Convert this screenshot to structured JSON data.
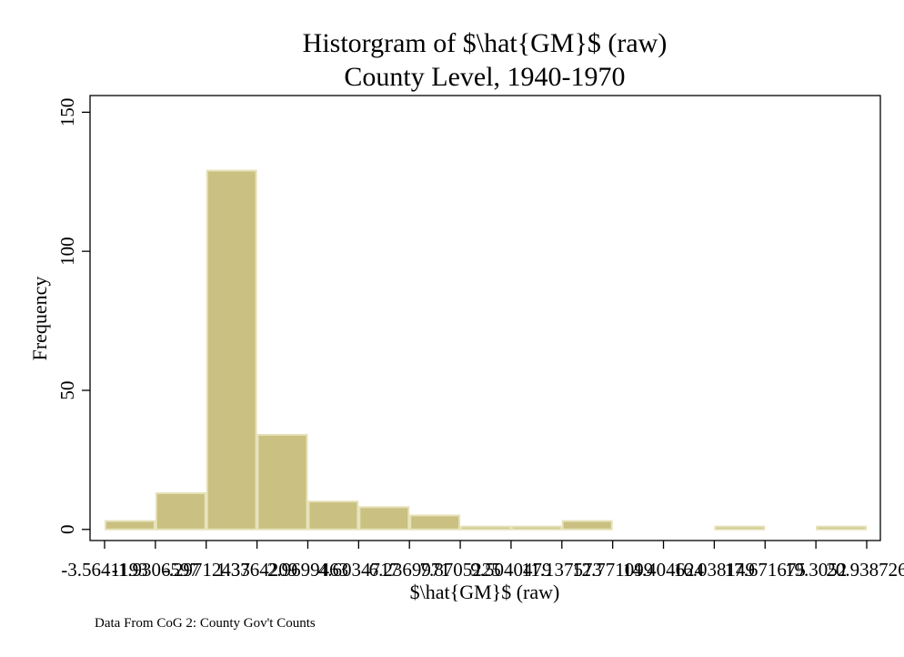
{
  "chart_data": {
    "type": "bar",
    "title": "Historgram of $\\hat{GM}$ (raw)",
    "subtitle": "County Level, 1940-1970",
    "xlabel": "$\\hat{GM}$ (raw)",
    "ylabel": "Frequency",
    "note": "Data From CoG 2: County Gov't Counts",
    "bin_edges": [
      -3.5641193,
      -1.9306597,
      -0.29712436,
      1.3364209,
      2.9699463,
      4.6034717,
      6.2369971,
      7.8705225,
      9.5040479,
      11.137573,
      12.771099,
      14.404624,
      16.038149,
      17.671675,
      19.3052,
      20.938726
    ],
    "x_tick_labels": [
      "-3.5641193",
      "-1.9306597",
      "-.29712437",
      "1.3364209",
      "2.9699463",
      "4.6034717",
      "6.2369971",
      "7.8705225",
      "9.5040479",
      "11.137573",
      "12.771099",
      "14.404624",
      "16.038149",
      "17.671675",
      "19.3052",
      "20.938726"
    ],
    "values": [
      3,
      13,
      129,
      34,
      10,
      8,
      5,
      1,
      1,
      3,
      0,
      0,
      1,
      0,
      1
    ],
    "y_ticks": [
      0,
      50,
      100,
      150
    ],
    "y_tick_labels": [
      "0",
      "50",
      "100",
      "150"
    ],
    "ylim": [
      -4,
      156
    ],
    "grid": false,
    "colors": {
      "bar_fill": "#c9c081",
      "bar_outline": "#e6e1b8",
      "axis": "#000000"
    }
  }
}
